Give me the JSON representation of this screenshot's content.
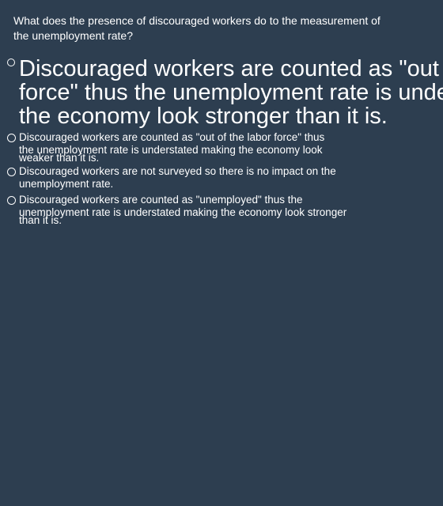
{
  "question": {
    "line1": "What does the presence of discouraged workers do to the measurement of",
    "line2": "the unemployment rate?"
  },
  "options": [
    {
      "id": "a",
      "lines": [
        "Discouraged workers are counted as \"out of the labor",
        "force\" thus the unemployment rate is understated making",
        "the economy look stronger than it is."
      ],
      "selected": false
    },
    {
      "id": "b",
      "lines": [
        "Discouraged workers are counted as \"out of the labor force\" thus",
        "the unemployment rate is understated making the economy look",
        "weaker than it is."
      ],
      "selected": false
    },
    {
      "id": "c",
      "lines": [
        "Discouraged workers are not surveyed so there is no impact on the",
        "unemployment rate."
      ],
      "selected": false
    },
    {
      "id": "d",
      "lines": [
        "Discouraged workers are counted as \"unemployed\" thus the",
        "unemployment rate is understated making the economy look stronger",
        "than it is."
      ],
      "selected": false
    }
  ],
  "colors": {
    "background": "#2d3e50",
    "text": "#ffffff"
  }
}
